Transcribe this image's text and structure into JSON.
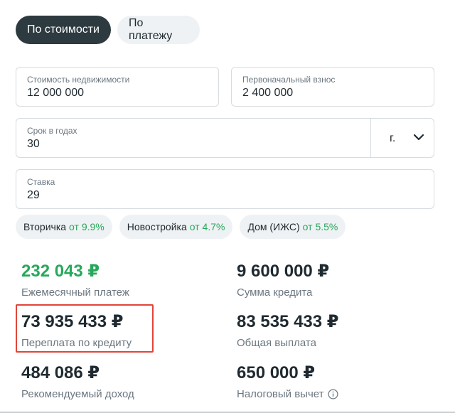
{
  "tabs": [
    {
      "label": "По стоимости",
      "active": true
    },
    {
      "label": "По платежу",
      "active": false
    }
  ],
  "fields": {
    "price": {
      "label": "Стоимость недвижимости",
      "value": "12 000 000"
    },
    "down_payment": {
      "label": "Первоначальный взнос",
      "value": "2 400 000"
    },
    "term": {
      "label": "Срок в годах",
      "value": "30",
      "unit": "г."
    },
    "rate": {
      "label": "Ставка",
      "value": "29"
    }
  },
  "chips": [
    {
      "label": "Вторичка",
      "rate": "от 9.9%"
    },
    {
      "label": "Новостройка",
      "rate": "от 4.7%"
    },
    {
      "label": "Дом (ИЖС)",
      "rate": "от 5.5%"
    }
  ],
  "results": {
    "monthly": {
      "amount": "232 043 ₽",
      "caption": "Ежемесячный платеж"
    },
    "loan": {
      "amount": "9 600 000 ₽",
      "caption": "Сумма кредита"
    },
    "overpayment": {
      "amount": "73 935 433 ₽",
      "caption": "Переплата по кредиту"
    },
    "total": {
      "amount": "83 535 433 ₽",
      "caption": "Общая выплата"
    },
    "income": {
      "amount": "484 086 ₽",
      "caption": "Рекомендуемый доход"
    },
    "tax": {
      "amount": "650 000 ₽",
      "caption": "Налоговый вычет"
    }
  },
  "icons": {
    "term_dropdown": "chevron-down-icon",
    "tax_info": "info-icon"
  },
  "colors": {
    "accent_dark": "#2d3a40",
    "positive": "#27a85a",
    "highlight": "#e0453a"
  }
}
